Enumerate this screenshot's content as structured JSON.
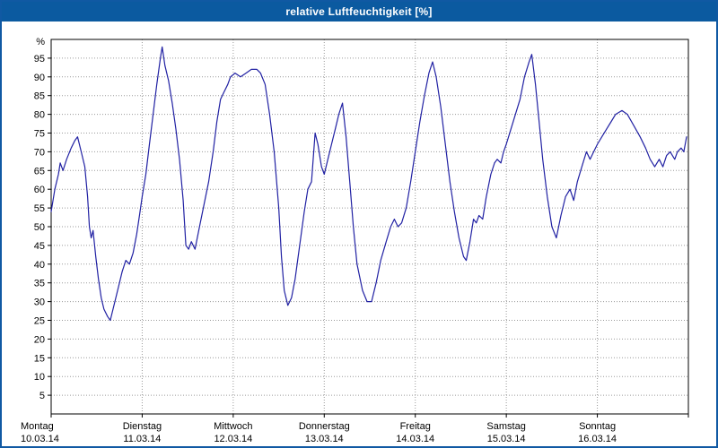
{
  "window": {
    "title": "relative Luftfeuchtigkeit [%]"
  },
  "colors": {
    "titlebar": "#0b5aa0",
    "border": "#1059a3",
    "line": "#2121a3",
    "grid": "#9a9a9a",
    "axis": "#000000",
    "plot_bg": "#ffffff"
  },
  "chart_data": {
    "type": "line",
    "title": "relative Luftfeuchtigkeit [%]",
    "ylabel": "%",
    "xlabel": "",
    "ylim": [
      0,
      100
    ],
    "ytick_min": 5,
    "ytick_max": 95,
    "ytick_step": 5,
    "x_days": [
      0,
      7
    ],
    "grid": true,
    "legend": "none",
    "categories": [
      {
        "day": "Montag",
        "date": "10.03.14"
      },
      {
        "day": "Dienstag",
        "date": "11.03.14"
      },
      {
        "day": "Mittwoch",
        "date": "12.03.14"
      },
      {
        "day": "Donnerstag",
        "date": "13.03.14"
      },
      {
        "day": "Freitag",
        "date": "14.03.14"
      },
      {
        "day": "Samstag",
        "date": "15.03.14"
      },
      {
        "day": "Sonntag",
        "date": "16.03.14"
      }
    ],
    "series": [
      {
        "name": "relative Luftfeuchtigkeit [%]",
        "points": [
          [
            0.0,
            54
          ],
          [
            0.04,
            60
          ],
          [
            0.08,
            64
          ],
          [
            0.1,
            67
          ],
          [
            0.13,
            65
          ],
          [
            0.17,
            68
          ],
          [
            0.22,
            71
          ],
          [
            0.26,
            73
          ],
          [
            0.29,
            74
          ],
          [
            0.33,
            70
          ],
          [
            0.37,
            66
          ],
          [
            0.4,
            58
          ],
          [
            0.42,
            50
          ],
          [
            0.44,
            47
          ],
          [
            0.46,
            49
          ],
          [
            0.49,
            42
          ],
          [
            0.52,
            36
          ],
          [
            0.55,
            31
          ],
          [
            0.58,
            28
          ],
          [
            0.62,
            26
          ],
          [
            0.65,
            25
          ],
          [
            0.7,
            30
          ],
          [
            0.74,
            34
          ],
          [
            0.78,
            38
          ],
          [
            0.82,
            41
          ],
          [
            0.86,
            40
          ],
          [
            0.9,
            43
          ],
          [
            0.94,
            48
          ],
          [
            0.97,
            53
          ],
          [
            1.0,
            58
          ],
          [
            1.04,
            64
          ],
          [
            1.08,
            72
          ],
          [
            1.12,
            80
          ],
          [
            1.16,
            88
          ],
          [
            1.2,
            95
          ],
          [
            1.22,
            98
          ],
          [
            1.25,
            93
          ],
          [
            1.29,
            89
          ],
          [
            1.33,
            83
          ],
          [
            1.37,
            76
          ],
          [
            1.41,
            68
          ],
          [
            1.45,
            57
          ],
          [
            1.48,
            45
          ],
          [
            1.51,
            44
          ],
          [
            1.54,
            46
          ],
          [
            1.58,
            44
          ],
          [
            1.63,
            50
          ],
          [
            1.68,
            56
          ],
          [
            1.73,
            62
          ],
          [
            1.78,
            70
          ],
          [
            1.82,
            78
          ],
          [
            1.86,
            84
          ],
          [
            1.9,
            86
          ],
          [
            1.94,
            88
          ],
          [
            1.97,
            90
          ],
          [
            2.02,
            91
          ],
          [
            2.08,
            90
          ],
          [
            2.14,
            91
          ],
          [
            2.2,
            92
          ],
          [
            2.26,
            92
          ],
          [
            2.3,
            91
          ],
          [
            2.35,
            88
          ],
          [
            2.4,
            80
          ],
          [
            2.45,
            70
          ],
          [
            2.5,
            55
          ],
          [
            2.53,
            42
          ],
          [
            2.56,
            33
          ],
          [
            2.6,
            29
          ],
          [
            2.64,
            31
          ],
          [
            2.68,
            36
          ],
          [
            2.73,
            45
          ],
          [
            2.78,
            54
          ],
          [
            2.82,
            60
          ],
          [
            2.86,
            62
          ],
          [
            2.9,
            75
          ],
          [
            2.93,
            72
          ],
          [
            2.97,
            66
          ],
          [
            3.0,
            64
          ],
          [
            3.04,
            68
          ],
          [
            3.08,
            72
          ],
          [
            3.12,
            76
          ],
          [
            3.16,
            80
          ],
          [
            3.2,
            83
          ],
          [
            3.24,
            74
          ],
          [
            3.28,
            62
          ],
          [
            3.32,
            50
          ],
          [
            3.36,
            40
          ],
          [
            3.42,
            33
          ],
          [
            3.47,
            30
          ],
          [
            3.52,
            30
          ],
          [
            3.57,
            35
          ],
          [
            3.62,
            41
          ],
          [
            3.68,
            46
          ],
          [
            3.73,
            50
          ],
          [
            3.77,
            52
          ],
          [
            3.81,
            50
          ],
          [
            3.85,
            51
          ],
          [
            3.9,
            55
          ],
          [
            3.95,
            62
          ],
          [
            4.0,
            70
          ],
          [
            4.05,
            78
          ],
          [
            4.1,
            85
          ],
          [
            4.15,
            91
          ],
          [
            4.19,
            94
          ],
          [
            4.23,
            90
          ],
          [
            4.28,
            82
          ],
          [
            4.33,
            72
          ],
          [
            4.38,
            62
          ],
          [
            4.43,
            54
          ],
          [
            4.48,
            47
          ],
          [
            4.53,
            42
          ],
          [
            4.56,
            41
          ],
          [
            4.6,
            46
          ],
          [
            4.64,
            52
          ],
          [
            4.67,
            51
          ],
          [
            4.7,
            53
          ],
          [
            4.74,
            52
          ],
          [
            4.78,
            58
          ],
          [
            4.83,
            64
          ],
          [
            4.87,
            67
          ],
          [
            4.9,
            68
          ],
          [
            4.94,
            67
          ],
          [
            4.97,
            70
          ],
          [
            5.0,
            72
          ],
          [
            5.05,
            76
          ],
          [
            5.1,
            80
          ],
          [
            5.15,
            84
          ],
          [
            5.2,
            90
          ],
          [
            5.25,
            94
          ],
          [
            5.28,
            96
          ],
          [
            5.32,
            88
          ],
          [
            5.36,
            78
          ],
          [
            5.4,
            68
          ],
          [
            5.45,
            58
          ],
          [
            5.5,
            50
          ],
          [
            5.55,
            47
          ],
          [
            5.6,
            53
          ],
          [
            5.65,
            58
          ],
          [
            5.7,
            60
          ],
          [
            5.74,
            57
          ],
          [
            5.78,
            62
          ],
          [
            5.83,
            66
          ],
          [
            5.88,
            70
          ],
          [
            5.92,
            68
          ],
          [
            5.96,
            70
          ],
          [
            6.0,
            72
          ],
          [
            6.05,
            74
          ],
          [
            6.1,
            76
          ],
          [
            6.15,
            78
          ],
          [
            6.2,
            80
          ],
          [
            6.27,
            81
          ],
          [
            6.33,
            80
          ],
          [
            6.4,
            77
          ],
          [
            6.47,
            74
          ],
          [
            6.53,
            71
          ],
          [
            6.58,
            68
          ],
          [
            6.63,
            66
          ],
          [
            6.68,
            68
          ],
          [
            6.72,
            66
          ],
          [
            6.76,
            69
          ],
          [
            6.8,
            70
          ],
          [
            6.85,
            68
          ],
          [
            6.88,
            70
          ],
          [
            6.92,
            71
          ],
          [
            6.95,
            70
          ],
          [
            6.98,
            74
          ]
        ]
      }
    ]
  }
}
